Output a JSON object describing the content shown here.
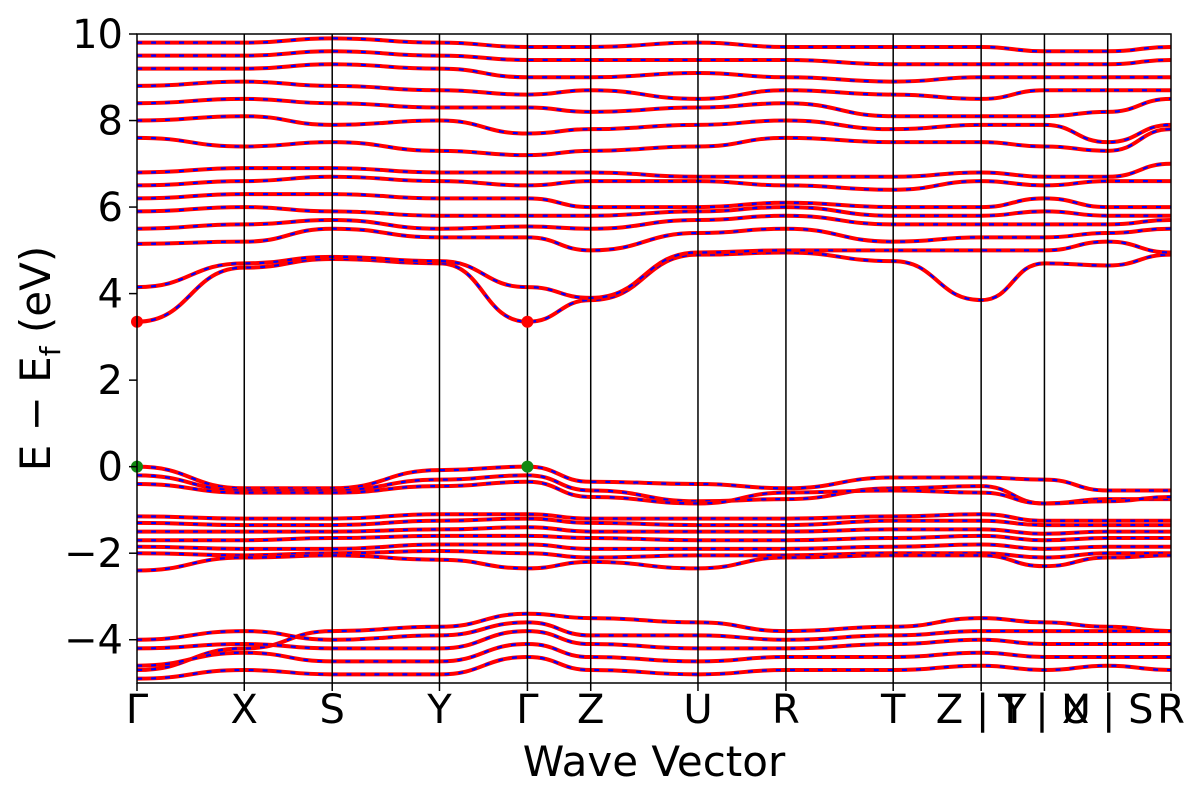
{
  "chart_data": {
    "type": "line",
    "xlabel": "Wave Vector",
    "ylabel_main": "E − E",
    "ylabel_sub": "f",
    "ylabel_unit": " (eV)",
    "ylim": [
      -5,
      10
    ],
    "yticks": [
      10,
      8,
      6,
      4,
      2,
      0,
      -2,
      -4
    ],
    "ytick_labels": [
      "10",
      "8",
      "6",
      "4",
      "2",
      "0",
      "−2",
      "−4"
    ],
    "kpoints": [
      {
        "label": "Γ",
        "x": 0
      },
      {
        "label": "X",
        "x": 1.0
      },
      {
        "label": "S",
        "x": 1.82
      },
      {
        "label": "Y",
        "x": 2.82
      },
      {
        "label": "Γ",
        "x": 3.64
      },
      {
        "label": "Z",
        "x": 4.23
      },
      {
        "label": "U",
        "x": 5.23
      },
      {
        "label": "R",
        "x": 6.05
      },
      {
        "label": "T",
        "x": 7.05
      },
      {
        "label": "Z|Y",
        "x": 7.87
      },
      {
        "label": "T|U",
        "x": 8.46
      },
      {
        "label": "X|S",
        "x": 9.05
      },
      {
        "label": "R",
        "x": 9.64
      }
    ],
    "xtick_text": [
      {
        "text": "Γ",
        "x": 0
      },
      {
        "text": "X",
        "x": 1.0
      },
      {
        "text": "S",
        "x": 1.82
      },
      {
        "text": "Y",
        "x": 2.82
      },
      {
        "text": "Γ",
        "x": 3.64
      },
      {
        "text": "Z",
        "x": 4.23
      },
      {
        "text": "U",
        "x": 5.23
      },
      {
        "text": "R",
        "x": 6.05
      },
      {
        "text": "T",
        "x": 7.05
      },
      {
        "text": "Z | Y",
        "x": 7.87
      },
      {
        "text": "T | U",
        "x": 8.46
      },
      {
        "text": "X | S",
        "x": 9.05
      },
      {
        "text": "R",
        "x": 9.64
      }
    ],
    "xlim": [
      0,
      9.64
    ],
    "valence_band_max": {
      "E": 0.0,
      "x": [
        0,
        3.64
      ],
      "color": "#118811"
    },
    "conduction_band_min": {
      "E": 3.35,
      "x": [
        0,
        3.64
      ],
      "color": "#ff0000"
    },
    "series": [
      {
        "color": "#ff0000",
        "style": "solid"
      },
      {
        "color": "#0000ff",
        "style": "dashed"
      }
    ],
    "bands": [
      [
        0.0,
        -0.5,
        -0.5,
        -0.08,
        0.0,
        -0.35,
        -0.4,
        -0.5,
        -0.25,
        -0.25,
        -0.3,
        -0.55,
        -0.55
      ],
      [
        -0.2,
        -0.55,
        -0.55,
        -0.3,
        -0.2,
        -0.55,
        -0.8,
        -0.75,
        -0.5,
        -0.45,
        -0.85,
        -0.75,
        -0.75
      ],
      [
        -0.4,
        -0.6,
        -0.6,
        -0.45,
        -0.35,
        -0.7,
        -0.85,
        -0.6,
        -0.55,
        -0.6,
        -0.85,
        -0.8,
        -0.7
      ],
      [
        -1.15,
        -1.2,
        -1.2,
        -1.1,
        -1.1,
        -1.2,
        -1.2,
        -1.2,
        -1.15,
        -1.1,
        -1.25,
        -1.25,
        -1.25
      ],
      [
        -1.3,
        -1.35,
        -1.35,
        -1.25,
        -1.2,
        -1.3,
        -1.35,
        -1.35,
        -1.25,
        -1.25,
        -1.35,
        -1.35,
        -1.35
      ],
      [
        -1.5,
        -1.5,
        -1.5,
        -1.45,
        -1.4,
        -1.5,
        -1.5,
        -1.5,
        -1.45,
        -1.45,
        -1.55,
        -1.5,
        -1.5
      ],
      [
        -1.7,
        -1.7,
        -1.65,
        -1.6,
        -1.6,
        -1.65,
        -1.7,
        -1.7,
        -1.65,
        -1.6,
        -1.7,
        -1.65,
        -1.65
      ],
      [
        -1.85,
        -1.9,
        -1.9,
        -1.8,
        -1.8,
        -1.9,
        -1.9,
        -1.9,
        -1.85,
        -1.8,
        -1.9,
        -1.85,
        -1.85
      ],
      [
        -2.0,
        -2.05,
        -2.0,
        -1.95,
        -2.0,
        -2.1,
        -2.05,
        -2.05,
        -2.0,
        -2.0,
        -2.1,
        -2.0,
        -2.0
      ],
      [
        -2.4,
        -2.1,
        -2.05,
        -2.15,
        -2.35,
        -2.2,
        -2.35,
        -2.1,
        -2.05,
        -2.05,
        -2.3,
        -2.1,
        -2.05
      ],
      [
        -4.7,
        -4.2,
        -3.8,
        -3.7,
        -3.4,
        -3.5,
        -3.6,
        -3.8,
        -3.7,
        -3.5,
        -3.6,
        -3.7,
        -3.8
      ],
      [
        -4.0,
        -3.8,
        -4.0,
        -3.9,
        -3.6,
        -3.9,
        -3.9,
        -4.0,
        -3.9,
        -3.8,
        -3.8,
        -3.8,
        -3.8
      ],
      [
        -4.2,
        -4.1,
        -4.2,
        -4.2,
        -3.8,
        -4.1,
        -4.2,
        -4.2,
        -4.1,
        -4.0,
        -4.1,
        -4.1,
        -4.1
      ],
      [
        -4.6,
        -4.3,
        -4.5,
        -4.5,
        -4.1,
        -4.4,
        -4.5,
        -4.4,
        -4.4,
        -4.3,
        -4.4,
        -4.4,
        -4.4
      ],
      [
        -4.9,
        -4.7,
        -4.8,
        -4.8,
        -4.4,
        -4.7,
        -4.8,
        -4.7,
        -4.7,
        -4.6,
        -4.7,
        -4.6,
        -4.7
      ],
      [
        3.35,
        4.6,
        4.8,
        4.7,
        3.35,
        3.85,
        4.9,
        4.95,
        4.75,
        3.85,
        4.7,
        4.65,
        4.9
      ],
      [
        4.15,
        4.7,
        4.85,
        4.75,
        4.15,
        3.9,
        4.95,
        5.0,
        5.0,
        5.0,
        5.0,
        5.2,
        4.95
      ],
      [
        5.15,
        5.2,
        5.5,
        5.3,
        5.3,
        5.0,
        5.4,
        5.5,
        5.2,
        5.3,
        5.3,
        5.4,
        5.5
      ],
      [
        5.5,
        5.6,
        5.7,
        5.5,
        5.55,
        5.5,
        5.7,
        5.8,
        5.6,
        5.6,
        5.6,
        5.6,
        5.7
      ],
      [
        5.9,
        6.0,
        5.9,
        5.8,
        5.8,
        5.8,
        5.9,
        6.0,
        5.8,
        5.8,
        5.9,
        5.8,
        5.8
      ],
      [
        6.2,
        6.3,
        6.3,
        6.2,
        6.2,
        6.0,
        6.0,
        6.1,
        6.0,
        6.0,
        6.2,
        6.0,
        6.0
      ],
      [
        6.5,
        6.6,
        6.7,
        6.6,
        6.5,
        6.6,
        6.6,
        6.5,
        6.4,
        6.6,
        6.5,
        6.6,
        6.6
      ],
      [
        6.8,
        6.9,
        6.9,
        6.8,
        6.8,
        6.8,
        6.7,
        6.7,
        6.7,
        6.8,
        6.7,
        6.7,
        7.0
      ],
      [
        7.6,
        7.4,
        7.5,
        7.3,
        7.2,
        7.3,
        7.4,
        7.6,
        7.5,
        7.5,
        7.4,
        7.3,
        7.8
      ],
      [
        8.0,
        8.1,
        7.9,
        8.0,
        7.7,
        7.8,
        7.9,
        8.0,
        7.8,
        7.9,
        7.9,
        7.5,
        7.9
      ],
      [
        8.4,
        8.5,
        8.4,
        8.3,
        8.3,
        8.2,
        8.3,
        8.4,
        8.1,
        8.1,
        8.1,
        8.2,
        8.5
      ],
      [
        8.8,
        8.9,
        8.8,
        8.7,
        8.6,
        8.7,
        8.5,
        8.7,
        8.6,
        8.5,
        8.7,
        8.7,
        8.7
      ],
      [
        9.2,
        9.2,
        9.3,
        9.2,
        9.0,
        9.0,
        9.1,
        9.0,
        8.9,
        9.0,
        9.0,
        9.0,
        9.0
      ],
      [
        9.5,
        9.5,
        9.6,
        9.5,
        9.4,
        9.4,
        9.4,
        9.4,
        9.3,
        9.3,
        9.3,
        9.3,
        9.4
      ],
      [
        9.8,
        9.8,
        9.9,
        9.8,
        9.7,
        9.7,
        9.8,
        9.7,
        9.7,
        9.7,
        9.6,
        9.6,
        9.7
      ]
    ],
    "grid": false
  }
}
